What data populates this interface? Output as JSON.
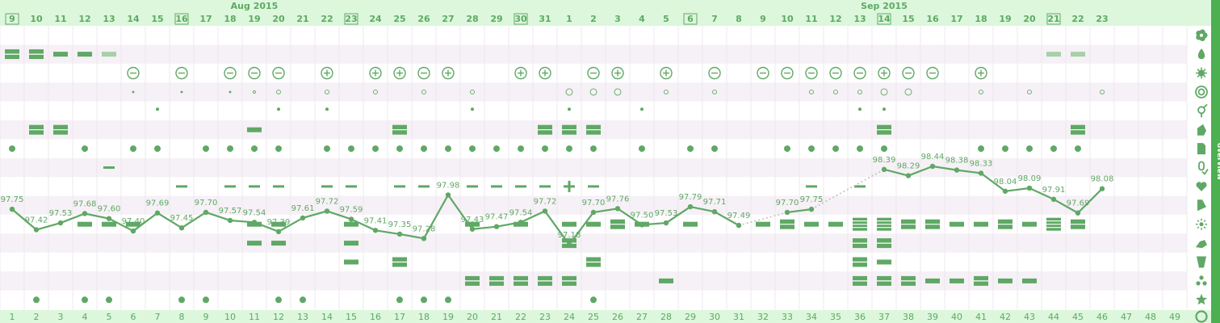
{
  "colors": {
    "accent": "#5fa865",
    "light_band": "#f6f1f6",
    "header_bg": "#dcf7dc",
    "sidebar": "#4caf50",
    "dots": "#bdbdbd"
  },
  "month_labels": [
    {
      "label": "Aug 2015",
      "col": 10
    },
    {
      "label": "Sep 2015",
      "col": 36
    }
  ],
  "top_dates": [
    "9",
    "10",
    "11",
    "12",
    "13",
    "14",
    "15",
    "16",
    "17",
    "18",
    "19",
    "20",
    "21",
    "22",
    "23",
    "24",
    "25",
    "26",
    "27",
    "28",
    "29",
    "30",
    "31",
    "1",
    "2",
    "3",
    "4",
    "5",
    "6",
    "7",
    "8",
    "9",
    "10",
    "11",
    "12",
    "13",
    "14",
    "15",
    "16",
    "17",
    "18",
    "19",
    "20",
    "21",
    "22",
    "23"
  ],
  "boxed_dates_cols": [
    0,
    7,
    14,
    21,
    28,
    36,
    43
  ],
  "cycle_days": [
    "1",
    "2",
    "3",
    "4",
    "5",
    "6",
    "7",
    "8",
    "9",
    "10",
    "11",
    "12",
    "13",
    "14",
    "15",
    "16",
    "17",
    "18",
    "19",
    "20",
    "21",
    "22",
    "23",
    "24",
    "25",
    "26",
    "27",
    "28",
    "29",
    "30",
    "31",
    "32",
    "33",
    "34",
    "35",
    "36",
    "37",
    "38",
    "39",
    "40",
    "41",
    "42",
    "43",
    "44",
    "45",
    "46",
    "47",
    "48",
    "49"
  ],
  "sidebar_label": "overview",
  "row_icons": [
    "flower-icon",
    "drop-icon",
    "virus-icon",
    "swirl-icon",
    "gender-icon",
    "hand-icon",
    "document-icon",
    "pill-icon",
    "heart-icon",
    "test-strip-icon",
    "sparkle-icon",
    "running-icon",
    "glass-icon",
    "dots-icon",
    "star-icon",
    "cycle-icon"
  ],
  "temperature": {
    "labels": [
      "97.75",
      "97.42",
      "97.53",
      "97.68",
      "97.60",
      "97.40",
      "97.69",
      "97.45",
      "97.70",
      "97.57",
      "97.54",
      "97.39",
      "97.61",
      "97.72",
      "97.59",
      "97.41",
      "97.35",
      "97.28",
      "97.98",
      "97.43",
      "97.47",
      "97.54",
      "97.72",
      "97.18",
      "97.70",
      "97.76",
      "97.50",
      "97.53",
      "97.79",
      "97.71",
      "97.49",
      "",
      "97.70",
      "97.75",
      "",
      "",
      "98.39",
      "98.29",
      "98.44",
      "98.38",
      "98.33",
      "98.04",
      "98.09",
      "97.91",
      "97.69",
      "98.08"
    ],
    "values": [
      97.75,
      97.42,
      97.53,
      97.68,
      97.6,
      97.4,
      97.69,
      97.45,
      97.7,
      97.57,
      97.54,
      97.39,
      97.61,
      97.72,
      97.59,
      97.41,
      97.35,
      97.28,
      97.98,
      97.43,
      97.47,
      97.54,
      97.72,
      97.18,
      97.7,
      97.76,
      97.5,
      97.53,
      97.79,
      97.71,
      97.49,
      null,
      97.7,
      97.75,
      null,
      null,
      98.39,
      98.29,
      98.44,
      98.38,
      98.33,
      98.04,
      98.09,
      97.91,
      97.69,
      98.08
    ]
  },
  "rows": {
    "flow": [
      [
        0,
        2
      ],
      [
        1,
        2
      ],
      [
        2,
        1
      ],
      [
        3,
        1
      ],
      [
        4,
        "s"
      ],
      [
        43,
        "s"
      ],
      [
        44,
        "s"
      ]
    ],
    "circle_marks": [
      [
        5,
        "-"
      ],
      [
        7,
        "-"
      ],
      [
        9,
        "-"
      ],
      [
        10,
        "-"
      ],
      [
        11,
        "-"
      ],
      [
        13,
        "+"
      ],
      [
        15,
        "+"
      ],
      [
        16,
        "+"
      ],
      [
        17,
        "-"
      ],
      [
        18,
        "+"
      ],
      [
        21,
        "+"
      ],
      [
        22,
        "+"
      ],
      [
        24,
        "-"
      ],
      [
        25,
        "+"
      ],
      [
        27,
        "+"
      ],
      [
        29,
        "-"
      ],
      [
        31,
        "-"
      ],
      [
        32,
        "-"
      ],
      [
        33,
        "-"
      ],
      [
        34,
        "-"
      ],
      [
        35,
        "-"
      ],
      [
        36,
        "+"
      ],
      [
        37,
        "-"
      ],
      [
        38,
        "-"
      ],
      [
        40,
        "+"
      ]
    ],
    "small_circles": [
      [
        5,
        1
      ],
      [
        7,
        1
      ],
      [
        9,
        1
      ],
      [
        10,
        2
      ],
      [
        11,
        3
      ],
      [
        13,
        3
      ],
      [
        15,
        3
      ],
      [
        17,
        3
      ],
      [
        19,
        3
      ],
      [
        23,
        4
      ],
      [
        24,
        4
      ],
      [
        25,
        4
      ],
      [
        27,
        3
      ],
      [
        29,
        3
      ],
      [
        33,
        3
      ],
      [
        34,
        3
      ],
      [
        35,
        3
      ],
      [
        36,
        4
      ],
      [
        37,
        4
      ],
      [
        40,
        3
      ],
      [
        42,
        3
      ],
      [
        45,
        3
      ]
    ],
    "tiny_dots": [
      6,
      11,
      13,
      19,
      23,
      26,
      35,
      36
    ],
    "row5_boxes": [
      [
        1,
        2
      ],
      [
        2,
        2
      ],
      [
        10,
        1
      ],
      [
        16,
        2
      ],
      [
        22,
        2
      ],
      [
        23,
        2
      ],
      [
        24,
        2
      ],
      [
        36,
        2
      ],
      [
        44,
        2
      ]
    ],
    "row6_dots": [
      0,
      3,
      5,
      6,
      8,
      9,
      10,
      11,
      13,
      14,
      15,
      16,
      17,
      18,
      19,
      20,
      21,
      22,
      23,
      24,
      26,
      28,
      29,
      32,
      33,
      34,
      35,
      36,
      40,
      41,
      42,
      43,
      44
    ],
    "row7_dash": [
      4
    ],
    "row8_dash": [
      7,
      9,
      10,
      11,
      13,
      14,
      16,
      17,
      19,
      20,
      21,
      22,
      24,
      33,
      35
    ],
    "row8_plus": [
      23
    ],
    "row10_bars": [
      [
        3,
        1
      ],
      [
        4,
        1
      ],
      [
        5,
        1
      ],
      [
        10,
        1
      ],
      [
        11,
        1
      ],
      [
        14,
        1
      ],
      [
        19,
        1
      ],
      [
        21,
        1
      ],
      [
        23,
        1
      ],
      [
        24,
        1
      ],
      [
        25,
        2
      ],
      [
        26,
        1
      ],
      [
        28,
        1
      ],
      [
        31,
        1
      ],
      [
        32,
        2
      ],
      [
        33,
        1
      ],
      [
        34,
        1
      ],
      [
        35,
        3
      ],
      [
        36,
        3
      ],
      [
        37,
        2
      ],
      [
        38,
        2
      ],
      [
        39,
        1
      ],
      [
        40,
        1
      ],
      [
        41,
        2
      ],
      [
        42,
        1
      ],
      [
        43,
        3
      ],
      [
        44,
        2
      ]
    ],
    "row11_bars": [
      [
        10,
        1
      ],
      [
        11,
        1
      ],
      [
        14,
        1
      ],
      [
        23,
        2
      ],
      [
        35,
        2
      ],
      [
        36,
        2
      ]
    ],
    "row12_bars": [
      [
        14,
        1
      ],
      [
        16,
        2
      ],
      [
        24,
        2
      ],
      [
        35,
        2
      ],
      [
        36,
        1
      ]
    ],
    "row13_bars": [
      [
        19,
        2
      ],
      [
        20,
        2
      ],
      [
        21,
        2
      ],
      [
        22,
        2
      ],
      [
        23,
        2
      ],
      [
        27,
        1
      ],
      [
        35,
        2
      ],
      [
        36,
        2
      ],
      [
        37,
        2
      ],
      [
        38,
        1
      ],
      [
        39,
        1
      ],
      [
        40,
        2
      ],
      [
        41,
        1
      ],
      [
        42,
        1
      ]
    ],
    "row14_dots": [
      1,
      3,
      4,
      7,
      8,
      11,
      12,
      16,
      17,
      18,
      24
    ]
  }
}
